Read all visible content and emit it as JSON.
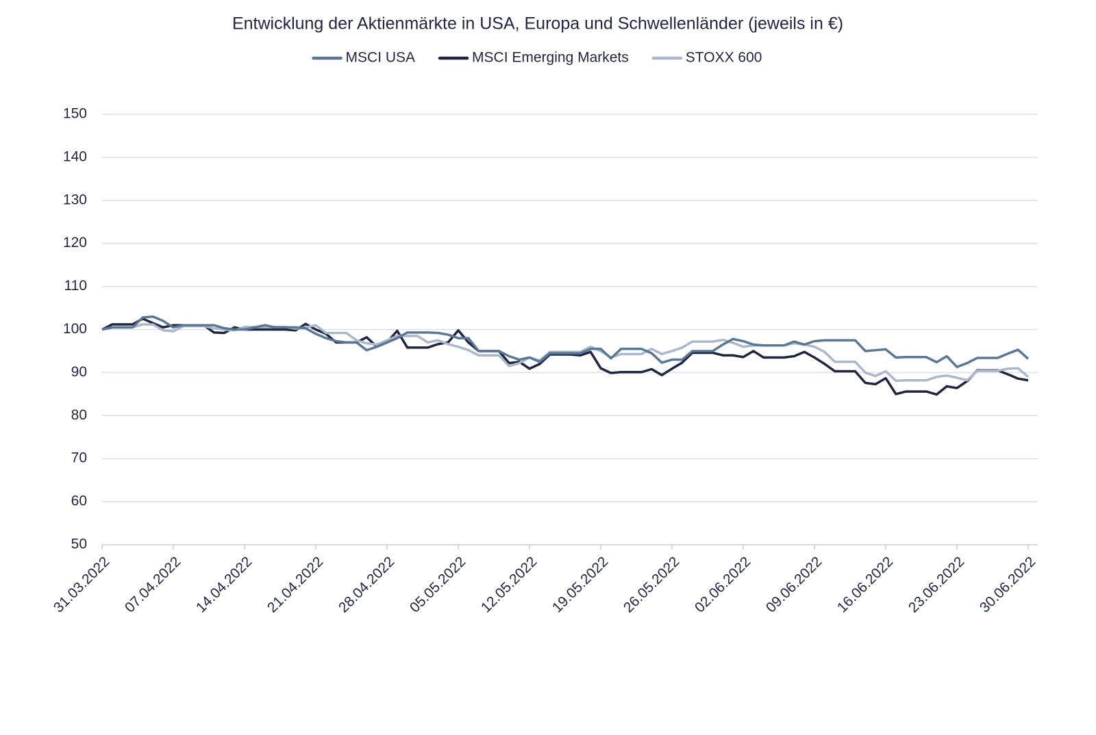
{
  "chart_data": {
    "type": "line",
    "title": "Entwicklung der Aktienmärkte in USA, Europa und Schwellenländer (jeweils in €)",
    "categories": [
      "31.03.2022",
      null,
      null,
      null,
      null,
      null,
      null,
      "07.04.2022",
      null,
      null,
      null,
      null,
      null,
      null,
      "14.04.2022",
      null,
      null,
      null,
      null,
      null,
      null,
      "21.04.2022",
      null,
      null,
      null,
      null,
      null,
      null,
      "28.04.2022",
      null,
      null,
      null,
      null,
      null,
      null,
      "05.05.2022",
      null,
      null,
      null,
      null,
      null,
      null,
      "12.05.2022",
      null,
      null,
      null,
      null,
      null,
      null,
      "19.05.2022",
      null,
      null,
      null,
      null,
      null,
      null,
      "26.05.2022",
      null,
      null,
      null,
      null,
      null,
      null,
      "02.06.2022",
      null,
      null,
      null,
      null,
      null,
      null,
      "09.06.2022",
      null,
      null,
      null,
      null,
      null,
      null,
      "16.06.2022",
      null,
      null,
      null,
      null,
      null,
      null,
      "23.06.2022",
      null,
      null,
      null,
      null,
      null,
      null,
      "30.06.2022"
    ],
    "series": [
      {
        "name": "MSCI USA",
        "color": "#5a7896",
        "values": [
          100,
          100.5,
          100.5,
          100.5,
          102.8,
          103,
          102,
          100.5,
          101,
          101,
          101,
          101,
          100.3,
          100,
          100,
          100.5,
          101,
          100.5,
          100.5,
          100.5,
          100.3,
          99,
          98,
          97.3,
          97,
          97,
          95.2,
          96,
          97,
          98,
          99.3,
          99.3,
          99.3,
          99.2,
          98.8,
          98,
          98,
          95,
          95,
          95,
          93.8,
          93,
          93.5,
          92.5,
          94.5,
          94.5,
          94.5,
          94.5,
          95.5,
          95.5,
          93.3,
          95.5,
          95.5,
          95.5,
          94.5,
          92.3,
          93,
          93,
          95,
          95,
          95,
          96.5,
          97.8,
          97.3,
          96.5,
          96.3,
          96.3,
          96.3,
          97.2,
          96.5,
          97.3,
          97.5,
          97.5,
          97.5,
          97.5,
          95,
          95.2,
          95.4,
          93.5,
          93.6,
          93.6,
          93.6,
          92.4,
          93.8,
          91.3,
          92.2,
          93.4,
          93.4,
          93.4,
          94.4,
          95.3,
          93.2
        ]
      },
      {
        "name": "MSCI Emerging Markets",
        "color": "#1f2440",
        "values": [
          100,
          101.2,
          101.2,
          101.2,
          102.5,
          101.5,
          100.5,
          101,
          101,
          101,
          101,
          99.3,
          99.2,
          100.5,
          100,
          100,
          100,
          100,
          100,
          99.8,
          101.3,
          100,
          99,
          97,
          97,
          97,
          98.2,
          96,
          97,
          99.7,
          95.8,
          95.8,
          95.8,
          96.6,
          97,
          99.8,
          97,
          95,
          95,
          95,
          92.2,
          92.5,
          90.9,
          92,
          94.2,
          94.2,
          94.2,
          94,
          94.8,
          91,
          89.9,
          90.1,
          90.1,
          90.1,
          90.8,
          89.4,
          90.9,
          92.3,
          94.6,
          94.6,
          94.6,
          94,
          94,
          93.6,
          95,
          93.5,
          93.5,
          93.5,
          93.8,
          94.8,
          93.5,
          92,
          90.3,
          90.3,
          90.3,
          87.6,
          87.3,
          88.7,
          85,
          85.6,
          85.6,
          85.6,
          84.9,
          86.8,
          86.4,
          88,
          90.5,
          90.5,
          90.5,
          89.6,
          88.6,
          88.2
        ]
      },
      {
        "name": "STOXX 600",
        "color": "#a9b8cb",
        "values": [
          100,
          100.5,
          100.5,
          100.5,
          101.2,
          101.2,
          99.8,
          99.6,
          100.8,
          100.8,
          100.8,
          100.3,
          100,
          99.8,
          100.6,
          100.6,
          100.6,
          100.6,
          100.6,
          100.2,
          100.5,
          101,
          99.2,
          99.2,
          99.2,
          97.5,
          96.8,
          96.5,
          97.5,
          98.5,
          98.5,
          98.5,
          97,
          97.5,
          96.6,
          96,
          95.2,
          94,
          94,
          94,
          91.5,
          92.2,
          93.5,
          92.8,
          94.8,
          94.8,
          94.8,
          94.8,
          96,
          95,
          93.5,
          94.3,
          94.3,
          94.3,
          95.5,
          94.3,
          95,
          95.8,
          97.2,
          97.2,
          97.2,
          97.6,
          96.9,
          96,
          96.3,
          96.3,
          96.3,
          96.3,
          96.8,
          96.5,
          96,
          94.8,
          92.5,
          92.5,
          92.5,
          90,
          89.2,
          90.3,
          88.1,
          88.2,
          88.2,
          88.2,
          89,
          89.3,
          88.8,
          88.2,
          90.4,
          90.4,
          90.4,
          90.9,
          91,
          89
        ]
      }
    ],
    "ylim": [
      50,
      150
    ],
    "yticks": [
      50,
      60,
      70,
      80,
      90,
      100,
      110,
      120,
      130,
      140,
      150
    ],
    "grid": true,
    "legend": "top"
  }
}
